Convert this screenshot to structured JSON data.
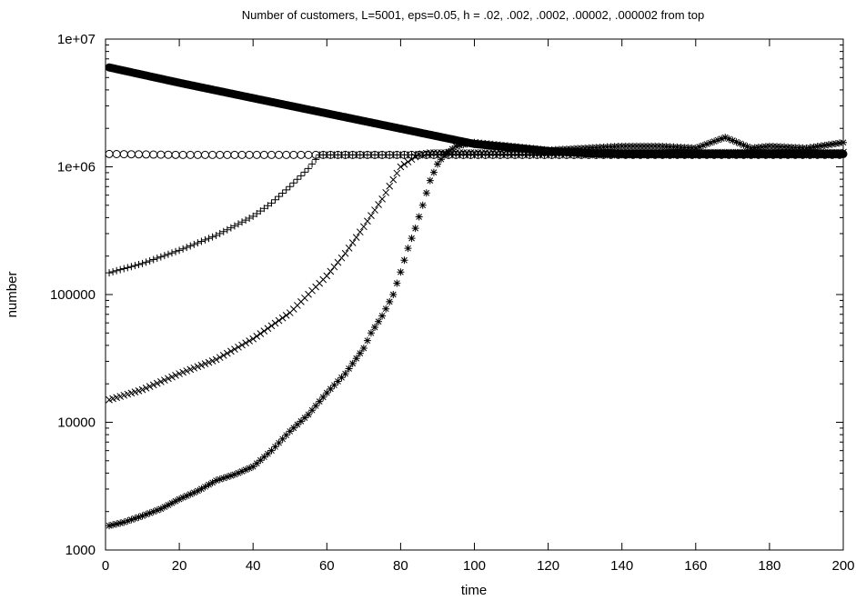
{
  "chart_data": {
    "type": "scatter",
    "title": "Number of customers, L=5001, eps=0.05, h = .02, .002, .0002, .00002, .000002 from top",
    "xlabel": "time",
    "ylabel": "number",
    "x_scale": "linear",
    "y_scale": "log",
    "xlim": [
      0,
      200
    ],
    "ylim": [
      1000,
      10000000
    ],
    "x_ticks": [
      0,
      20,
      40,
      60,
      80,
      100,
      120,
      140,
      160,
      180,
      200
    ],
    "y_ticks": [
      1000,
      10000,
      100000,
      1000000,
      10000000
    ],
    "x_tick_labels": [
      "0",
      "20",
      "40",
      "60",
      "80",
      "100",
      "120",
      "140",
      "160",
      "180",
      "200"
    ],
    "y_tick_labels": [
      "1000",
      "10000",
      "100000",
      "1e+06",
      "1e+07"
    ],
    "grid": false,
    "legend": "none",
    "series": [
      {
        "marker": "filled-circle",
        "x": [
          1,
          20,
          40,
          60,
          80,
          100,
          120,
          130,
          140,
          160,
          180,
          200
        ],
        "y": [
          6000000,
          4550000,
          3450000,
          2620000,
          1990000,
          1510000,
          1330000,
          1280000,
          1260000,
          1260000,
          1260000,
          1260000
        ]
      },
      {
        "marker": "open-circle",
        "x": [
          1,
          20,
          40,
          60,
          80,
          100,
          120,
          140,
          160,
          180,
          200
        ],
        "y": [
          1260000,
          1240000,
          1240000,
          1240000,
          1240000,
          1240000,
          1240000,
          1240000,
          1240000,
          1240000,
          1240000
        ]
      },
      {
        "marker": "plus",
        "x": [
          1,
          10,
          20,
          30,
          40,
          45,
          50,
          55,
          58,
          60,
          80,
          100,
          120,
          140,
          160,
          180,
          200
        ],
        "y": [
          148000,
          175000,
          222000,
          290000,
          410000,
          520000,
          700000,
          970000,
          1240000,
          1240000,
          1240000,
          1240000,
          1240000,
          1240000,
          1240000,
          1240000,
          1240000
        ]
      },
      {
        "marker": "cross",
        "x": [
          1,
          10,
          20,
          30,
          40,
          50,
          60,
          65,
          70,
          75,
          80,
          85,
          88,
          90,
          100,
          120,
          140,
          160,
          180,
          200
        ],
        "y": [
          15000,
          18000,
          24000,
          31000,
          45000,
          72000,
          140000,
          210000,
          340000,
          560000,
          1000000,
          1250000,
          1290000,
          1290000,
          1290000,
          1280000,
          1300000,
          1300000,
          1300000,
          1300000
        ]
      },
      {
        "marker": "star",
        "x": [
          1,
          5,
          10,
          15,
          20,
          25,
          30,
          35,
          40,
          45,
          50,
          55,
          60,
          65,
          70,
          72,
          75,
          78,
          80,
          82,
          84,
          86,
          88,
          90,
          92,
          95,
          100,
          110,
          120,
          130,
          140,
          150,
          160,
          168,
          175,
          180,
          190,
          200
        ],
        "y": [
          1550,
          1650,
          1850,
          2100,
          2500,
          2900,
          3500,
          3900,
          4500,
          6000,
          8500,
          11500,
          17000,
          24000,
          38000,
          50000,
          68000,
          100000,
          150000,
          230000,
          330000,
          500000,
          780000,
          1050000,
          1250000,
          1450000,
          1550000,
          1450000,
          1350000,
          1400000,
          1450000,
          1450000,
          1400000,
          1700000,
          1400000,
          1450000,
          1400000,
          1550000
        ]
      }
    ]
  }
}
